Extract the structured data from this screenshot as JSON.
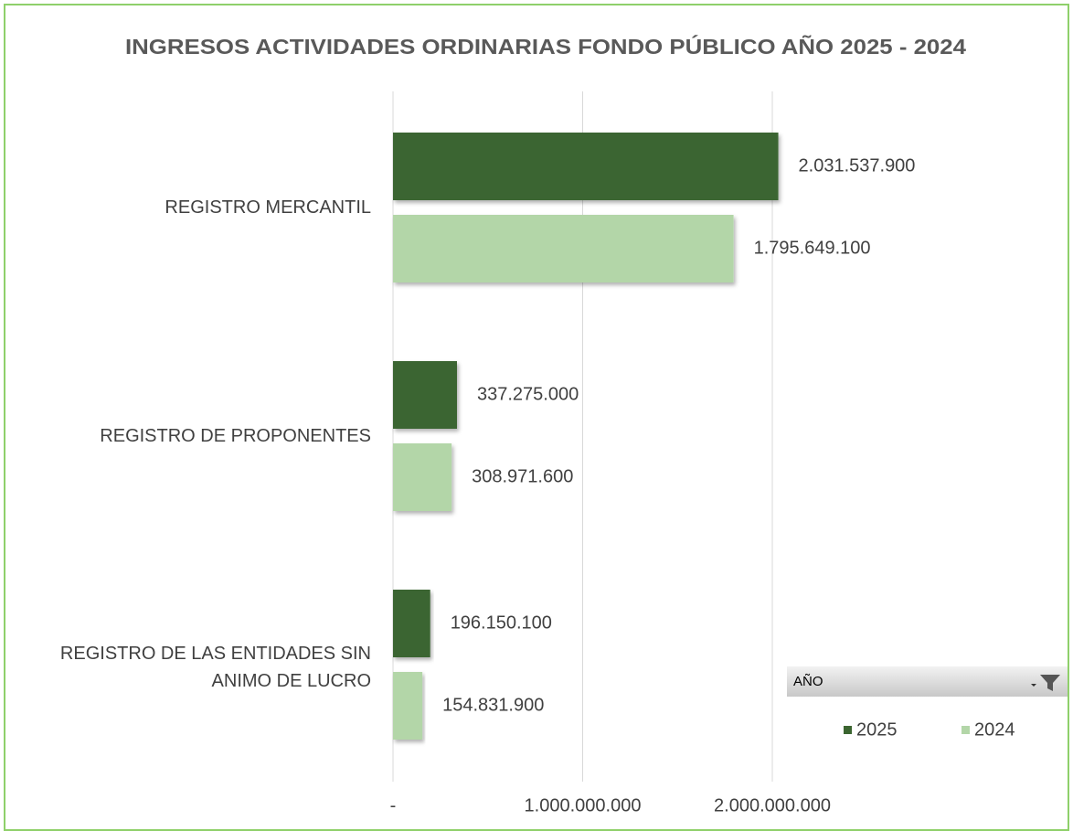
{
  "chart_data": {
    "type": "barh",
    "title": "INGRESOS ACTIVIDADES ORDINARIAS FONDO PÚBLICO  AÑO 2025 - 2024",
    "categories": [
      "REGISTRO MERCANTIL",
      "REGISTRO DE PROPONENTES",
      "REGISTRO DE LAS ENTIDADES SIN ANIMO DE LUCRO"
    ],
    "series": [
      {
        "name": "2025",
        "color": "#3b6530",
        "values": [
          2031537900,
          337275000,
          196150100
        ],
        "value_labels": [
          "2.031.537.900",
          "337.275.000",
          "196.150.100"
        ]
      },
      {
        "name": "2024",
        "color": "#b3d6a8",
        "values": [
          1795649100,
          308971600,
          154831900
        ],
        "value_labels": [
          "1.795.649.100",
          "308.971.600",
          "154.831.900"
        ]
      }
    ],
    "xlim": [
      0,
      2000000000
    ],
    "xticks": [
      {
        "value": 0,
        "label": "-"
      },
      {
        "value": 1000000000,
        "label": "1.000.000.000"
      },
      {
        "value": 2000000000,
        "label": "2.000.000.000"
      }
    ],
    "grid": true,
    "legend_title": "AÑO",
    "legend": "bottom-right"
  }
}
